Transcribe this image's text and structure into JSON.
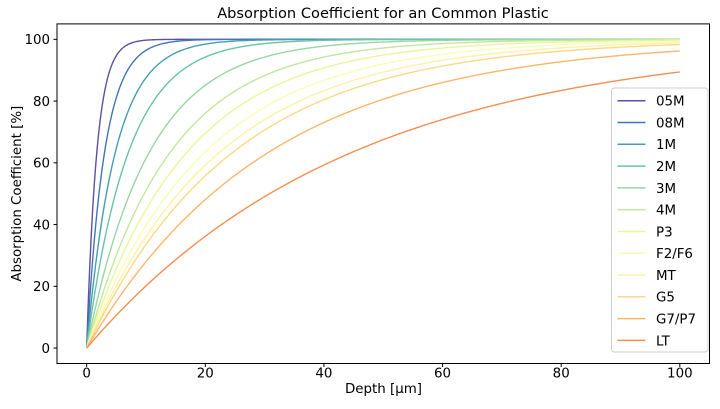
{
  "chart_data": {
    "type": "line",
    "title": "Absorption Coefficient for an Common Plastic",
    "xlabel": "Depth [μm]",
    "ylabel": "Absorption Coefficient [%]",
    "xlim": [
      -5,
      105
    ],
    "ylim": [
      -5,
      105
    ],
    "xticks": [
      0,
      20,
      40,
      60,
      80,
      100
    ],
    "yticks": [
      0,
      20,
      40,
      60,
      80,
      100
    ],
    "grid": false,
    "legend_position": "lower right",
    "model": "y = 100 * (1 - exp(-depth / tau))",
    "x_range": [
      0,
      100
    ],
    "series": [
      {
        "name": "05M",
        "tau": 1.7,
        "color": "#5e4fa2"
      },
      {
        "name": "08M",
        "tau": 3.0,
        "color": "#4076b4"
      },
      {
        "name": "1M",
        "tau": 4.8,
        "color": "#459db4"
      },
      {
        "name": "2M",
        "tau": 7.0,
        "color": "#69c3a5"
      },
      {
        "name": "3M",
        "tau": 10.5,
        "color": "#98d6a4"
      },
      {
        "name": "4M",
        "tau": 14.0,
        "color": "#c3e79f"
      },
      {
        "name": "P3",
        "tau": 16.8,
        "color": "#e8f69c"
      },
      {
        "name": "F2/F6",
        "tau": 19.8,
        "color": "#f9fdb6"
      },
      {
        "name": "MT",
        "tau": 22.3,
        "color": "#fff1a7"
      },
      {
        "name": "G5",
        "tau": 24.5,
        "color": "#fed985"
      },
      {
        "name": "G7/P7",
        "tau": 30.5,
        "color": "#fdb769"
      },
      {
        "name": "LT",
        "tau": 44.5,
        "color": "#f88e52"
      }
    ]
  }
}
